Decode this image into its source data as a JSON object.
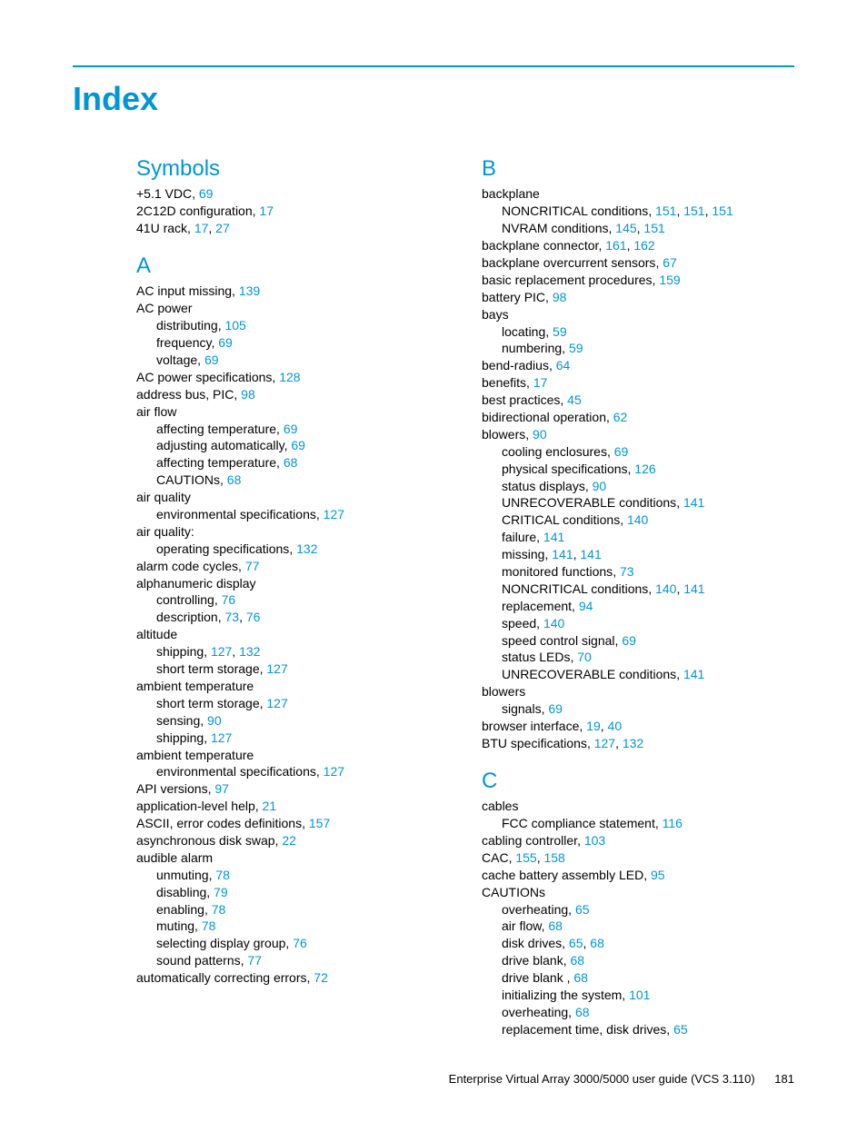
{
  "page_title": "Index",
  "rule_color": "#0096d6",
  "heading_color": "#0096d6",
  "link_color": "#0096d6",
  "text_color": "#000000",
  "background_color": "#ffffff",
  "title_fontsize": 36,
  "heading_fontsize": 24,
  "body_fontsize": 14,
  "footer_text": "Enterprise Virtual Array 3000/5000 user guide (VCS 3.110)",
  "page_number": "181",
  "left_column": [
    {
      "type": "heading",
      "text": "Symbols"
    },
    {
      "type": "entry",
      "text": "+5.1 VDC",
      "pages": [
        "69"
      ]
    },
    {
      "type": "entry",
      "text": "2C12D configuration",
      "pages": [
        "17"
      ]
    },
    {
      "type": "entry",
      "text": "41U rack",
      "pages": [
        "17",
        "27"
      ]
    },
    {
      "type": "gap"
    },
    {
      "type": "heading",
      "text": "A"
    },
    {
      "type": "entry",
      "text": "AC input missing",
      "pages": [
        "139"
      ]
    },
    {
      "type": "entry",
      "text": "AC power"
    },
    {
      "type": "sub",
      "text": "distributing",
      "pages": [
        "105"
      ]
    },
    {
      "type": "sub",
      "text": "frequency",
      "pages": [
        "69"
      ]
    },
    {
      "type": "sub",
      "text": "voltage",
      "pages": [
        "69"
      ]
    },
    {
      "type": "entry",
      "text": "AC power specifications",
      "pages": [
        "128"
      ]
    },
    {
      "type": "entry",
      "text": "address bus, PIC",
      "pages": [
        "98"
      ]
    },
    {
      "type": "entry",
      "text": "air flow"
    },
    {
      "type": "sub",
      "text": "affecting temperature",
      "pages": [
        "69"
      ]
    },
    {
      "type": "sub",
      "text": "adjusting automatically",
      "pages": [
        "69"
      ]
    },
    {
      "type": "sub",
      "text": "affecting temperature",
      "pages": [
        "68"
      ]
    },
    {
      "type": "sub",
      "text": "CAUTIONs",
      "pages": [
        "68"
      ]
    },
    {
      "type": "entry",
      "text": "air quality"
    },
    {
      "type": "sub",
      "text": "environmental specifications",
      "pages": [
        "127"
      ]
    },
    {
      "type": "entry",
      "text": "air quality:"
    },
    {
      "type": "sub",
      "text": "operating specifications",
      "pages": [
        "132"
      ]
    },
    {
      "type": "entry",
      "text": "alarm code cycles",
      "pages": [
        "77"
      ]
    },
    {
      "type": "entry",
      "text": "alphanumeric display"
    },
    {
      "type": "sub",
      "text": "controlling",
      "pages": [
        "76"
      ]
    },
    {
      "type": "sub",
      "text": "description",
      "pages": [
        "73",
        "76"
      ]
    },
    {
      "type": "entry",
      "text": "altitude"
    },
    {
      "type": "sub",
      "text": "shipping",
      "pages": [
        "127",
        "132"
      ]
    },
    {
      "type": "sub",
      "text": "short term storage",
      "pages": [
        "127"
      ]
    },
    {
      "type": "entry",
      "text": "ambient temperature"
    },
    {
      "type": "sub",
      "text": "short term storage",
      "pages": [
        "127"
      ]
    },
    {
      "type": "sub",
      "text": "sensing",
      "pages": [
        "90"
      ]
    },
    {
      "type": "sub",
      "text": "shipping",
      "pages": [
        "127"
      ]
    },
    {
      "type": "entry",
      "text": "ambient temperature"
    },
    {
      "type": "sub",
      "text": "environmental specifications",
      "pages": [
        "127"
      ]
    },
    {
      "type": "entry",
      "text": "API versions",
      "pages": [
        "97"
      ]
    },
    {
      "type": "entry",
      "text": "application-level help",
      "pages": [
        "21"
      ]
    },
    {
      "type": "entry",
      "text": "ASCII, error codes definitions",
      "pages": [
        "157"
      ]
    },
    {
      "type": "entry",
      "text": "asynchronous disk swap",
      "pages": [
        "22"
      ]
    },
    {
      "type": "entry",
      "text": "audible alarm"
    },
    {
      "type": "sub",
      "text": "unmuting",
      "pages": [
        "78"
      ]
    },
    {
      "type": "sub",
      "text": "disabling",
      "pages": [
        "79"
      ]
    },
    {
      "type": "sub",
      "text": "enabling",
      "pages": [
        "78"
      ]
    },
    {
      "type": "sub",
      "text": "muting",
      "pages": [
        "78"
      ]
    },
    {
      "type": "sub",
      "text": "selecting display group",
      "pages": [
        "76"
      ]
    },
    {
      "type": "sub",
      "text": "sound patterns",
      "pages": [
        "77"
      ]
    },
    {
      "type": "entry",
      "text": "automatically correcting errors",
      "pages": [
        "72"
      ]
    }
  ],
  "right_column": [
    {
      "type": "heading",
      "text": "B"
    },
    {
      "type": "entry",
      "text": "backplane"
    },
    {
      "type": "sub",
      "text": "NONCRITICAL conditions",
      "pages": [
        "151",
        "151",
        "151"
      ]
    },
    {
      "type": "sub",
      "text": "NVRAM conditions",
      "pages": [
        "145",
        "151"
      ]
    },
    {
      "type": "entry",
      "text": "backplane connector",
      "pages": [
        "161",
        "162"
      ]
    },
    {
      "type": "entry",
      "text": "backplane overcurrent sensors",
      "pages": [
        "67"
      ]
    },
    {
      "type": "entry",
      "text": "basic replacement procedures",
      "pages": [
        "159"
      ]
    },
    {
      "type": "entry",
      "text": "battery PIC",
      "pages": [
        "98"
      ]
    },
    {
      "type": "entry",
      "text": "bays"
    },
    {
      "type": "sub",
      "text": "locating",
      "pages": [
        "59"
      ]
    },
    {
      "type": "sub",
      "text": "numbering",
      "pages": [
        "59"
      ]
    },
    {
      "type": "entry",
      "text": "bend-radius",
      "pages": [
        "64"
      ]
    },
    {
      "type": "entry",
      "text": "benefits",
      "pages": [
        "17"
      ]
    },
    {
      "type": "entry",
      "text": "best practices",
      "pages": [
        "45"
      ]
    },
    {
      "type": "entry",
      "text": "bidirectional operation",
      "pages": [
        "62"
      ]
    },
    {
      "type": "entry",
      "text": "blowers",
      "pages": [
        "90"
      ]
    },
    {
      "type": "sub",
      "text": "cooling enclosures",
      "pages": [
        "69"
      ]
    },
    {
      "type": "sub",
      "text": "physical specifications",
      "pages": [
        "126"
      ]
    },
    {
      "type": "sub",
      "text": "status displays",
      "pages": [
        "90"
      ]
    },
    {
      "type": "sub",
      "text": "UNRECOVERABLE conditions",
      "pages": [
        "141"
      ]
    },
    {
      "type": "sub",
      "text": "CRITICAL conditions",
      "pages": [
        "140"
      ]
    },
    {
      "type": "sub",
      "text": "failure",
      "pages": [
        "141"
      ]
    },
    {
      "type": "sub",
      "text": "missing",
      "pages": [
        "141",
        "141"
      ]
    },
    {
      "type": "sub",
      "text": "monitored functions",
      "pages": [
        "73"
      ]
    },
    {
      "type": "sub",
      "text": "NONCRITICAL conditions",
      "pages": [
        "140",
        "141"
      ]
    },
    {
      "type": "sub",
      "text": "replacement",
      "pages": [
        "94"
      ]
    },
    {
      "type": "sub",
      "text": "speed",
      "pages": [
        "140"
      ]
    },
    {
      "type": "sub",
      "text": "speed control signal",
      "pages": [
        "69"
      ]
    },
    {
      "type": "sub",
      "text": "status LEDs",
      "pages": [
        "70"
      ]
    },
    {
      "type": "sub",
      "text": "UNRECOVERABLE conditions",
      "pages": [
        "141"
      ]
    },
    {
      "type": "entry",
      "text": "blowers"
    },
    {
      "type": "sub",
      "text": "signals",
      "pages": [
        "69"
      ]
    },
    {
      "type": "entry",
      "text": "browser interface",
      "pages": [
        "19",
        "40"
      ]
    },
    {
      "type": "entry",
      "text": "BTU specifications",
      "pages": [
        "127",
        "132"
      ]
    },
    {
      "type": "gap"
    },
    {
      "type": "heading",
      "text": "C"
    },
    {
      "type": "entry",
      "text": "cables"
    },
    {
      "type": "sub",
      "text": "FCC compliance statement",
      "pages": [
        "116"
      ]
    },
    {
      "type": "entry",
      "text": "cabling controller",
      "pages": [
        "103"
      ]
    },
    {
      "type": "entry",
      "text": "CAC",
      "pages": [
        "155",
        "158"
      ]
    },
    {
      "type": "entry",
      "text": "cache battery assembly LED",
      "pages": [
        "95"
      ]
    },
    {
      "type": "entry",
      "text": "CAUTIONs"
    },
    {
      "type": "sub",
      "text": "overheating",
      "pages": [
        "65"
      ]
    },
    {
      "type": "sub",
      "text": "air flow",
      "pages": [
        "68"
      ]
    },
    {
      "type": "sub",
      "text": "disk drives",
      "pages": [
        "65",
        "68"
      ]
    },
    {
      "type": "sub",
      "text": "drive blank",
      "pages": [
        "68"
      ]
    },
    {
      "type": "sub",
      "text": "drive blank ",
      "pages": [
        "68"
      ]
    },
    {
      "type": "sub",
      "text": "initializing the system",
      "pages": [
        "101"
      ]
    },
    {
      "type": "sub",
      "text": "overheating",
      "pages": [
        "68"
      ]
    },
    {
      "type": "sub",
      "text": "replacement time, disk drives",
      "pages": [
        "65"
      ]
    }
  ]
}
